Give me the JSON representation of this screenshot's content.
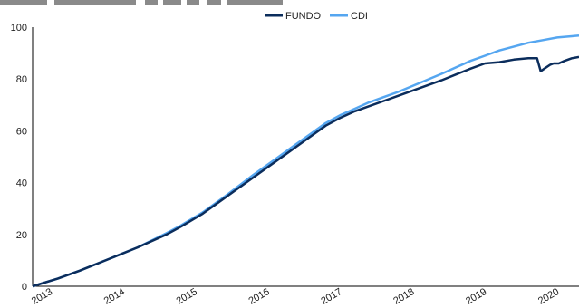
{
  "chart_data": {
    "type": "line",
    "title": "",
    "xlabel": "",
    "ylabel": "",
    "ylim": [
      0,
      100
    ],
    "yticks": [
      0,
      20,
      40,
      60,
      80,
      100
    ],
    "xticks": [
      "2013",
      "2014",
      "2015",
      "2016",
      "2017",
      "2018",
      "2019",
      "2020"
    ],
    "xlim": [
      2012.95,
      2020.5
    ],
    "grid": false,
    "legend_position": "top-center",
    "series": [
      {
        "name": "FUNDO",
        "color": "#0b2d5c",
        "x": [
          2012.95,
          2013.3,
          2013.6,
          2014.0,
          2014.4,
          2014.8,
          2015.0,
          2015.3,
          2015.6,
          2016.0,
          2016.3,
          2016.6,
          2016.8,
          2017.0,
          2017.2,
          2017.4,
          2017.6,
          2017.8,
          2018.0,
          2018.3,
          2018.6,
          2019.0,
          2019.2,
          2019.4,
          2019.6,
          2019.8,
          2019.92,
          2019.97,
          2020.02,
          2020.1,
          2020.15,
          2020.22,
          2020.3,
          2020.4,
          2020.5
        ],
        "y": [
          0,
          3,
          6,
          10.5,
          15,
          20,
          23,
          28,
          34,
          42,
          48,
          54,
          58,
          62,
          65,
          67.5,
          69.5,
          71.5,
          73.5,
          76.5,
          79.5,
          84,
          86,
          86.5,
          87.5,
          88,
          88,
          83,
          84,
          85.5,
          86,
          86,
          87,
          88,
          88.5
        ]
      },
      {
        "name": "CDI",
        "color": "#55a6f0",
        "x": [
          2012.95,
          2013.3,
          2013.6,
          2014.0,
          2014.4,
          2014.8,
          2015.0,
          2015.3,
          2015.6,
          2016.0,
          2016.3,
          2016.6,
          2016.8,
          2017.0,
          2017.2,
          2017.4,
          2017.6,
          2017.8,
          2018.0,
          2018.3,
          2018.6,
          2019.0,
          2019.2,
          2019.4,
          2019.6,
          2019.8,
          2020.0,
          2020.2,
          2020.4,
          2020.5
        ],
        "y": [
          0,
          3,
          6,
          10.5,
          15,
          20.5,
          23.5,
          28.5,
          34.5,
          43,
          49,
          55,
          59,
          63,
          66,
          68.5,
          71,
          73,
          75,
          78.5,
          82,
          87,
          89,
          91,
          92.5,
          94,
          95,
          96,
          96.5,
          96.8
        ]
      }
    ]
  }
}
